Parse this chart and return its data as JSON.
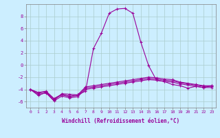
{
  "xlabel": "Windchill (Refroidissement éolien,°C)",
  "background_color": "#cceeff",
  "grid_color": "#aacccc",
  "line_color": "#990099",
  "x_hours": [
    0,
    1,
    2,
    3,
    4,
    5,
    6,
    7,
    8,
    9,
    10,
    11,
    12,
    13,
    14,
    15,
    16,
    17,
    18,
    19,
    20,
    21,
    22,
    23
  ],
  "series": [
    [
      -4.0,
      -5.0,
      -4.5,
      -5.8,
      -4.7,
      -4.8,
      -4.9,
      -4.3,
      2.7,
      5.2,
      8.5,
      9.2,
      9.3,
      8.5,
      3.8,
      -0.1,
      -2.5,
      -2.7,
      -3.2,
      -3.4,
      -3.8,
      -3.5,
      -3.7,
      -3.4
    ],
    [
      -4.0,
      -4.5,
      -4.3,
      -5.5,
      -4.8,
      -5.1,
      -4.9,
      -3.6,
      -3.4,
      -3.2,
      -3.0,
      -2.8,
      -2.6,
      -2.4,
      -2.2,
      -2.0,
      -2.1,
      -2.3,
      -2.4,
      -2.8,
      -3.0,
      -3.2,
      -3.4,
      -3.4
    ],
    [
      -4.0,
      -4.6,
      -4.4,
      -5.6,
      -4.9,
      -5.2,
      -5.0,
      -3.8,
      -3.6,
      -3.4,
      -3.2,
      -3.0,
      -2.8,
      -2.6,
      -2.4,
      -2.2,
      -2.3,
      -2.5,
      -2.6,
      -2.9,
      -3.1,
      -3.3,
      -3.5,
      -3.5
    ],
    [
      -4.0,
      -4.8,
      -4.6,
      -5.9,
      -5.1,
      -5.4,
      -5.2,
      -4.0,
      -3.8,
      -3.6,
      -3.4,
      -3.2,
      -3.0,
      -2.8,
      -2.6,
      -2.4,
      -2.5,
      -2.7,
      -2.8,
      -3.1,
      -3.3,
      -3.5,
      -3.7,
      -3.7
    ]
  ],
  "ylim": [
    -7,
    10
  ],
  "yticks": [
    -6,
    -4,
    -2,
    0,
    2,
    4,
    6,
    8
  ],
  "xticks": [
    0,
    1,
    2,
    3,
    4,
    5,
    6,
    7,
    8,
    9,
    10,
    11,
    12,
    13,
    14,
    15,
    16,
    17,
    18,
    19,
    20,
    21,
    22,
    23
  ],
  "tick_fontsize": 4.5,
  "xlabel_fontsize": 5.5
}
